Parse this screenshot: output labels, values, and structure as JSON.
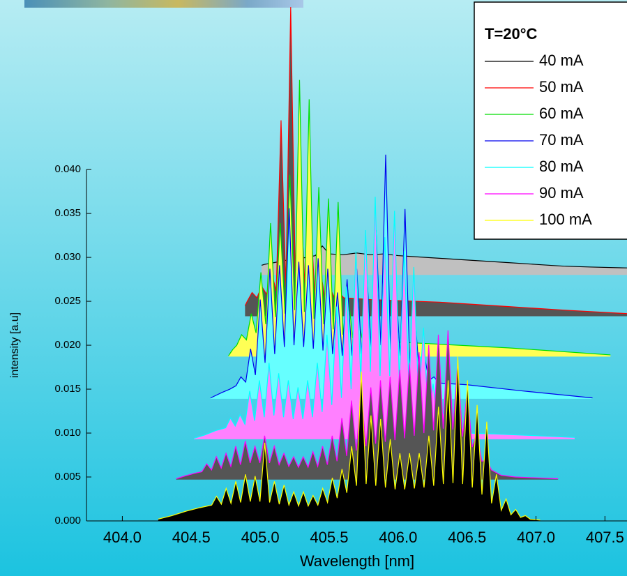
{
  "chart_data": {
    "type": "line",
    "x_label": "Wavelength [nm]",
    "y_label": "intensity [a.u]",
    "xlim": [
      403.74,
      407.66
    ],
    "ylim": [
      0,
      0.0593
    ],
    "xticks": [
      {
        "value": 404,
        "label": "404.0"
      },
      404.5,
      {
        "value": 405,
        "label": "405.0"
      },
      405.5,
      {
        "value": 406,
        "label": "406.0"
      },
      406.5,
      {
        "value": 407,
        "label": "407.0"
      },
      407.5
    ],
    "yticks": [
      {
        "value": 0,
        "label": "0.000"
      },
      {
        "value": 0.005,
        "label": "0.005"
      },
      {
        "value": 0.01,
        "label": "0.010"
      },
      {
        "value": 0.015,
        "label": "0.015"
      },
      {
        "value": 0.02,
        "label": "0.020"
      },
      {
        "value": 0.025,
        "label": "0.025"
      },
      {
        "value": 0.03,
        "label": "0.030"
      },
      {
        "value": 0.035,
        "label": "0.035"
      },
      {
        "value": 0.04,
        "label": "0.040"
      }
    ],
    "legend_title": "T=20°C",
    "legend_position": "upper right",
    "series": [
      {
        "name": "40 mA",
        "color": "#000000",
        "fill": "#c0c0c0",
        "baseline": 0.028,
        "x": [
          405.01,
          405.03,
          405.1,
          405.2,
          405.3,
          405.4,
          405.45,
          405.5,
          405.6,
          405.7,
          405.8,
          405.9,
          406.0,
          406.2,
          406.4,
          406.6,
          406.8,
          407.0,
          407.2,
          407.4,
          407.66
        ],
        "values": [
          0.0291,
          0.0292,
          0.0294,
          0.0297,
          0.0299,
          0.0302,
          0.0313,
          0.0304,
          0.0303,
          0.0305,
          0.0303,
          0.0304,
          0.0302,
          0.03,
          0.0298,
          0.0296,
          0.0294,
          0.0292,
          0.029,
          0.0289,
          0.0288
        ]
      },
      {
        "name": "50 mA",
        "color": "#ff0000",
        "fill": "#555555",
        "baseline": 0.0233,
        "x": [
          404.89,
          404.906,
          404.941,
          404.976,
          405.011,
          405.046,
          405.081,
          405.116,
          405.151,
          405.186,
          405.221,
          405.256,
          405.291,
          405.326,
          405.361,
          405.396,
          405.431,
          405.466,
          405.501,
          405.536,
          405.571,
          405.606,
          405.8,
          406.3,
          406.8,
          407.2,
          407.66
        ],
        "values": [
          0.0245,
          0.025,
          0.026,
          0.0254,
          0.0267,
          0.0258,
          0.0283,
          0.0262,
          0.0456,
          0.0266,
          0.0585,
          0.0264,
          0.0371,
          0.0262,
          0.0355,
          0.0258,
          0.0291,
          0.0256,
          0.0267,
          0.0255,
          0.026,
          0.0254,
          0.0252,
          0.0249,
          0.0244,
          0.024,
          0.0236
        ]
      },
      {
        "name": "60 mA",
        "color": "#00dd00",
        "fill": "#ffff55",
        "baseline": 0.0187,
        "x": [
          404.77,
          404.8,
          404.83,
          404.865,
          404.9,
          404.935,
          404.97,
          405.005,
          405.04,
          405.075,
          405.11,
          405.145,
          405.18,
          405.215,
          405.25,
          405.285,
          405.32,
          405.355,
          405.39,
          405.425,
          405.46,
          405.495,
          405.53,
          405.565,
          405.6,
          405.635,
          405.67,
          405.705,
          405.74,
          405.775,
          405.81,
          406.2,
          406.8,
          407.54
        ],
        "values": [
          0.0188,
          0.0195,
          0.02,
          0.0212,
          0.0206,
          0.0236,
          0.0214,
          0.0283,
          0.0224,
          0.0339,
          0.0232,
          0.0339,
          0.0236,
          0.0394,
          0.024,
          0.0502,
          0.0238,
          0.048,
          0.023,
          0.038,
          0.0224,
          0.0367,
          0.0218,
          0.0363,
          0.0212,
          0.0263,
          0.0208,
          0.0236,
          0.0206,
          0.022,
          0.0205,
          0.0202,
          0.0197,
          0.0189
        ]
      },
      {
        "name": "70 mA",
        "color": "#0000ee",
        "fill": "#66ffff",
        "baseline": 0.0139,
        "x": [
          404.64,
          404.72,
          404.78,
          404.825,
          404.86,
          404.895,
          404.93,
          404.965,
          405.0,
          405.035,
          405.07,
          405.105,
          405.14,
          405.175,
          405.21,
          405.245,
          405.28,
          405.315,
          405.35,
          405.385,
          405.42,
          405.455,
          405.49,
          405.525,
          405.56,
          405.595,
          405.63,
          405.665,
          405.7,
          405.735,
          405.77,
          405.805,
          405.84,
          405.875,
          405.91,
          405.945,
          405.98,
          406.015,
          406.05,
          406.085,
          406.12,
          406.155,
          406.19,
          406.225,
          406.26,
          406.295,
          406.5,
          406.9,
          407.41
        ],
        "values": [
          0.014,
          0.0146,
          0.015,
          0.0154,
          0.0164,
          0.0158,
          0.0196,
          0.0166,
          0.0252,
          0.018,
          0.0287,
          0.019,
          0.0291,
          0.0198,
          0.0356,
          0.02,
          0.0295,
          0.0198,
          0.0291,
          0.0196,
          0.0299,
          0.0194,
          0.0287,
          0.019,
          0.026,
          0.0188,
          0.0275,
          0.0188,
          0.0287,
          0.019,
          0.029,
          0.0195,
          0.0331,
          0.02,
          0.0417,
          0.0195,
          0.0275,
          0.0188,
          0.0355,
          0.0176,
          0.0236,
          0.0166,
          0.0188,
          0.016,
          0.0164,
          0.0157,
          0.0155,
          0.0148,
          0.014
        ]
      },
      {
        "name": "80 mA",
        "color": "#00ffff",
        "fill": "#ff80ff",
        "baseline": 0.0093,
        "x": [
          404.52,
          404.6,
          404.68,
          404.749,
          404.784,
          404.819,
          404.854,
          404.889,
          404.924,
          404.959,
          404.994,
          405.029,
          405.064,
          405.099,
          405.134,
          405.169,
          405.204,
          405.239,
          405.274,
          405.309,
          405.344,
          405.379,
          405.414,
          405.449,
          405.484,
          405.519,
          405.554,
          405.589,
          405.624,
          405.659,
          405.694,
          405.729,
          405.764,
          405.799,
          405.834,
          405.869,
          405.904,
          405.939,
          405.974,
          406.009,
          406.044,
          406.079,
          406.114,
          406.149,
          406.184,
          406.219,
          406.254,
          406.289,
          406.324,
          406.359,
          406.394,
          406.429,
          406.464,
          406.499,
          406.7,
          407.0,
          407.28
        ],
        "values": [
          0.0094,
          0.0098,
          0.0103,
          0.0106,
          0.0117,
          0.0108,
          0.0121,
          0.011,
          0.0148,
          0.0114,
          0.016,
          0.0118,
          0.018,
          0.012,
          0.0168,
          0.0118,
          0.016,
          0.0116,
          0.0152,
          0.0116,
          0.016,
          0.0118,
          0.018,
          0.0124,
          0.0212,
          0.0132,
          0.0244,
          0.014,
          0.0267,
          0.015,
          0.0307,
          0.016,
          0.0331,
          0.017,
          0.0369,
          0.0165,
          0.0323,
          0.0165,
          0.0353,
          0.0158,
          0.0307,
          0.015,
          0.0289,
          0.0135,
          0.022,
          0.0118,
          0.0156,
          0.0108,
          0.0125,
          0.0103,
          0.0113,
          0.0101,
          0.0107,
          0.01,
          0.0099,
          0.0097,
          0.0095
        ]
      },
      {
        "name": "90 mA",
        "color": "#ff00ff",
        "fill": "#555555",
        "baseline": 0.0047,
        "x": [
          404.39,
          404.45,
          404.52,
          404.577,
          404.612,
          404.647,
          404.682,
          404.717,
          404.752,
          404.787,
          404.822,
          404.857,
          404.892,
          404.927,
          404.962,
          404.997,
          405.032,
          405.067,
          405.102,
          405.137,
          405.172,
          405.207,
          405.242,
          405.277,
          405.312,
          405.347,
          405.382,
          405.417,
          405.452,
          405.487,
          405.522,
          405.557,
          405.592,
          405.627,
          405.662,
          405.697,
          405.732,
          405.767,
          405.802,
          405.837,
          405.872,
          405.907,
          405.942,
          405.977,
          406.012,
          406.047,
          406.082,
          406.117,
          406.152,
          406.187,
          406.222,
          406.257,
          406.292,
          406.327,
          406.362,
          406.397,
          406.432,
          406.467,
          406.502,
          406.537,
          406.572,
          406.607,
          406.642,
          406.677,
          406.712,
          406.747,
          406.85,
          407.0,
          407.16
        ],
        "values": [
          0.0048,
          0.0051,
          0.0054,
          0.0056,
          0.0065,
          0.0058,
          0.0073,
          0.006,
          0.0077,
          0.0062,
          0.0085,
          0.0064,
          0.0091,
          0.0066,
          0.0085,
          0.0066,
          0.0097,
          0.0066,
          0.0085,
          0.0064,
          0.0077,
          0.0062,
          0.0073,
          0.0061,
          0.0073,
          0.0061,
          0.0079,
          0.0062,
          0.0085,
          0.0064,
          0.0097,
          0.0068,
          0.0117,
          0.0074,
          0.0137,
          0.008,
          0.0148,
          0.0085,
          0.0152,
          0.0088,
          0.016,
          0.009,
          0.0164,
          0.0092,
          0.0172,
          0.0094,
          0.018,
          0.0097,
          0.0192,
          0.01,
          0.02,
          0.0103,
          0.0212,
          0.0105,
          0.0217,
          0.0104,
          0.018,
          0.0096,
          0.0148,
          0.0084,
          0.0101,
          0.0068,
          0.0069,
          0.0058,
          0.0055,
          0.0052,
          0.005,
          0.0049,
          0.0048
        ]
      },
      {
        "name": "100 mA",
        "color": "#ffff00",
        "fill": "#000000",
        "baseline": 0,
        "x": [
          404.26,
          404.36,
          404.46,
          404.56,
          404.648,
          404.683,
          404.718,
          404.753,
          404.788,
          404.823,
          404.858,
          404.893,
          404.928,
          404.963,
          404.998,
          405.033,
          405.068,
          405.103,
          405.138,
          405.173,
          405.208,
          405.243,
          405.278,
          405.313,
          405.348,
          405.383,
          405.418,
          405.453,
          405.488,
          405.523,
          405.558,
          405.593,
          405.628,
          405.663,
          405.698,
          405.733,
          405.768,
          405.803,
          405.838,
          405.873,
          405.908,
          405.943,
          405.978,
          406.013,
          406.048,
          406.083,
          406.118,
          406.153,
          406.188,
          406.223,
          406.258,
          406.293,
          406.328,
          406.363,
          406.398,
          406.433,
          406.468,
          406.503,
          406.538,
          406.573,
          406.608,
          406.643,
          406.678,
          406.713,
          406.748,
          406.783,
          406.818,
          406.853,
          406.888,
          406.923,
          406.958,
          407.03
        ],
        "values": [
          0.0002,
          0.0006,
          0.0011,
          0.0015,
          0.0018,
          0.0028,
          0.0019,
          0.0037,
          0.002,
          0.0045,
          0.0021,
          0.0053,
          0.0022,
          0.0051,
          0.0022,
          0.0089,
          0.0021,
          0.0045,
          0.0019,
          0.0041,
          0.0018,
          0.0033,
          0.0017,
          0.0033,
          0.0017,
          0.0029,
          0.0018,
          0.0037,
          0.0021,
          0.0049,
          0.0026,
          0.0059,
          0.0032,
          0.0085,
          0.004,
          0.017,
          0.0042,
          0.012,
          0.004,
          0.0116,
          0.0038,
          0.0093,
          0.0036,
          0.0077,
          0.0036,
          0.0077,
          0.0037,
          0.0077,
          0.0038,
          0.0097,
          0.004,
          0.013,
          0.0042,
          0.016,
          0.0043,
          0.0187,
          0.0042,
          0.016,
          0.0038,
          0.0132,
          0.003,
          0.0113,
          0.002,
          0.0053,
          0.0012,
          0.0025,
          0.0007,
          0.0013,
          0.0004,
          0.0006,
          0.0002,
          0.0001
        ]
      }
    ]
  }
}
